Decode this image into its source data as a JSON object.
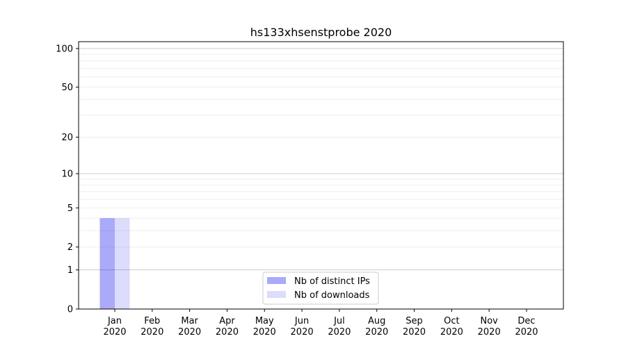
{
  "chart_data": {
    "type": "bar",
    "title": "hs133xhsenstprobe 2020",
    "xlabel": "",
    "ylabel": "",
    "y_scale": "log10(1+y)",
    "ylim": [
      0,
      113
    ],
    "yticks": [
      0,
      1,
      2,
      5,
      10,
      20,
      50,
      100
    ],
    "grid": true,
    "legend_position": "lower-center",
    "categories": [
      "Jan\n2020",
      "Feb\n2020",
      "Mar\n2020",
      "Apr\n2020",
      "May\n2020",
      "Jun\n2020",
      "Jul\n2020",
      "Aug\n2020",
      "Sep\n2020",
      "Oct\n2020",
      "Nov\n2020",
      "Dec\n2020"
    ],
    "series": [
      {
        "name": "Nb of distinct IPs",
        "color": "#aaaaf8",
        "values": [
          4,
          0,
          0,
          0,
          0,
          0,
          0,
          0,
          0,
          0,
          0,
          0
        ]
      },
      {
        "name": "Nb of downloads",
        "color": "#dcdcfc",
        "values": [
          4,
          0,
          0,
          0,
          0,
          0,
          0,
          0,
          0,
          0,
          0,
          0
        ]
      }
    ]
  }
}
